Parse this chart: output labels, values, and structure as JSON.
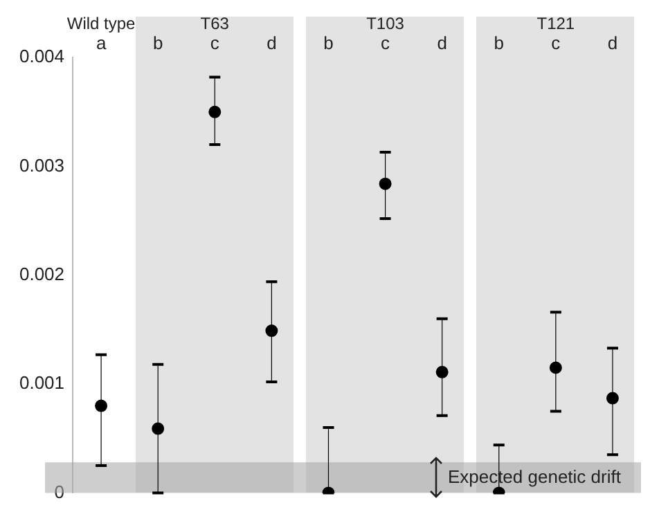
{
  "chart_data": {
    "type": "scatter",
    "categories": [
      "a",
      "b",
      "c",
      "d",
      "b",
      "c",
      "d",
      "b",
      "c",
      "d"
    ],
    "values": [
      0.0008,
      0.00059,
      0.0035,
      0.00149,
      0,
      0.00284,
      0.00111,
      0,
      0.00115,
      0.00087
    ],
    "errors": [
      [
        0.00025,
        0.00127
      ],
      [
        0,
        0.00118
      ],
      [
        0.0032,
        0.00382
      ],
      [
        0.00102,
        0.00194
      ],
      [
        0,
        0.0006
      ],
      [
        0.00252,
        0.00313
      ],
      [
        0.00071,
        0.0016
      ],
      [
        0,
        0.00044
      ],
      [
        0.00075,
        0.00166
      ],
      [
        0.00035,
        0.00133
      ]
    ],
    "color": "#000000",
    "marker": "circle",
    "ylim": [
      0,
      0.004
    ],
    "yticks": [
      0,
      0.001,
      0.002,
      0.003,
      0.004
    ],
    "annotations": [
      "Wild type",
      "T63",
      "T103",
      "T121"
    ],
    "bands": [
      {
        "axis": "y",
        "from": 0,
        "to": 0.00028,
        "label": "Expected genetic drift",
        "color": "#a6a6a6"
      }
    ]
  }
}
